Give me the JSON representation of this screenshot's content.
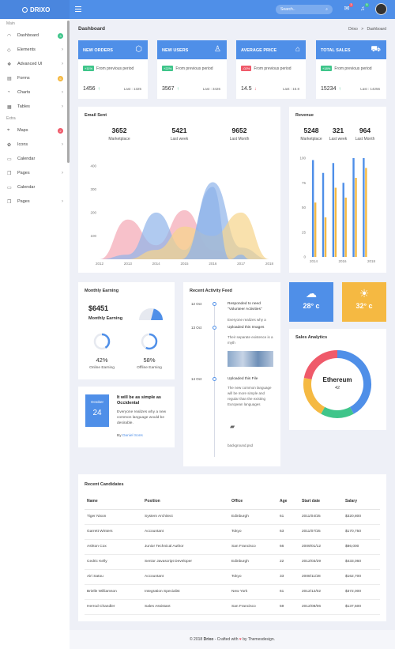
{
  "app": {
    "brand": "DRIXO"
  },
  "header": {
    "search_placeholder": "Search..",
    "mail_badge": "3",
    "bell_badge": "5"
  },
  "sidebar": {
    "main_label": "Main",
    "extra_label": "Extra",
    "items": [
      {
        "label": "Dashboard",
        "icon": "dashboard-icon",
        "badge": "3"
      },
      {
        "label": "Elements",
        "icon": "elements-icon"
      },
      {
        "label": "Advanced UI",
        "icon": "advanced-ui-icon"
      },
      {
        "label": "Forms",
        "icon": "forms-icon",
        "badge": "6"
      },
      {
        "label": "Charts",
        "icon": "charts-icon"
      },
      {
        "label": "Tables",
        "icon": "tables-icon"
      }
    ],
    "extra_items": [
      {
        "label": "Maps",
        "icon": "map-icon",
        "badge": "2"
      },
      {
        "label": "Icons",
        "icon": "icons-icon"
      },
      {
        "label": "Calendar",
        "icon": "calendar-icon"
      },
      {
        "label": "Pages",
        "icon": "pages-icon"
      },
      {
        "label": "Calendar",
        "icon": "calendar-icon"
      },
      {
        "label": "Pages",
        "icon": "pages-icon"
      }
    ]
  },
  "page": {
    "title": "Dashboard",
    "crumb_root": "Drixo",
    "crumb_sep": ">",
    "crumb_current": "Dashboard"
  },
  "stats": [
    {
      "title": "NEW ORDERS",
      "icon": "cube-icon",
      "pct": "+11%",
      "prev": "From previous period",
      "value": "1456",
      "arrow": "↑",
      "last": "Last : 1325"
    },
    {
      "title": "NEW USERS",
      "icon": "user-icon",
      "pct": "+22%",
      "prev": "From previous period",
      "value": "3567",
      "arrow": "↑",
      "last": "Last : 3426"
    },
    {
      "title": "AVERAGE PRICE",
      "icon": "tag-icon",
      "pct": "-02%",
      "prev": "From previous period",
      "value": "14.5",
      "arrow": "↓",
      "last": "Last : 15.8"
    },
    {
      "title": "TOTAL SALES",
      "icon": "cart-icon",
      "pct": "+18%",
      "prev": "From previous period",
      "value": "15234",
      "arrow": "↑",
      "last": "Last : 14256"
    }
  ],
  "email": {
    "title": "Email Sent",
    "summary": [
      {
        "value": "3652",
        "label": "Marketplace"
      },
      {
        "value": "5421",
        "label": "Last week"
      },
      {
        "value": "9652",
        "label": "Last Month"
      }
    ]
  },
  "revenue": {
    "title": "Revenue",
    "summary": [
      {
        "value": "5248",
        "label": "Marketplace"
      },
      {
        "value": "321",
        "label": "Last week"
      },
      {
        "value": "964",
        "label": "Last Month"
      }
    ]
  },
  "monthly": {
    "title": "Monthly Earning",
    "amount": "$6451",
    "label": "Monthly Earning",
    "online_pct": "42%",
    "online_label": "Online Earning",
    "offline_pct": "58%",
    "offline_label": "Offline Earning"
  },
  "post": {
    "month": "October",
    "day": "24",
    "title": "It will be as simple as Occidental",
    "body": "Everyone realizes why a new common language would be desirable.",
    "by": "By",
    "author": "Daniel Sons"
  },
  "feed": {
    "title": "Recent Activity Feed",
    "items": [
      {
        "time": "12 Oct",
        "text": "Responded to need \"Volunteer Activities\"",
        "sub": "Everyone realizes why a"
      },
      {
        "time": "13 Oct",
        "text": "Uploaded this Images",
        "sub": "Their separate existence is a myth"
      },
      {
        "time": "14 Oct",
        "text": "Uploaded this File",
        "sub": "The new common language will be more simple and regular than the existing European languages"
      },
      {
        "time": "",
        "text": "",
        "sub": "background.psd"
      }
    ]
  },
  "weather": [
    {
      "value": "28° c",
      "icon": "cloud-icon",
      "color": "#4f8fe8"
    },
    {
      "value": "32° c",
      "icon": "sun-cloud-icon",
      "color": "#f5b942"
    }
  ],
  "sales": {
    "title": "Sales Analytics",
    "center_label": "Ethereum",
    "center_value": "42"
  },
  "candidates": {
    "title": "Recent Candidates",
    "columns": [
      "Name",
      "Position",
      "Office",
      "Age",
      "Start date",
      "Salary"
    ],
    "rows": [
      [
        "Tiger Nixon",
        "System Architect",
        "Edinburgh",
        "61",
        "2011/04/25",
        "$320,800"
      ],
      [
        "Garrett Winters",
        "Accountant",
        "Tokyo",
        "63",
        "2011/07/25",
        "$170,750"
      ],
      [
        "Ashton Cox",
        "Junior Technical Author",
        "San Francisco",
        "66",
        "2009/01/12",
        "$86,000"
      ],
      [
        "Cedric Kelly",
        "Senior Javascript Developer",
        "Edinburgh",
        "22",
        "2012/03/29",
        "$433,060"
      ],
      [
        "Airi Satou",
        "Accountant",
        "Tokyo",
        "33",
        "2008/11/28",
        "$162,700"
      ],
      [
        "Brielle Williamson",
        "Integration Specialist",
        "New York",
        "61",
        "2012/12/02",
        "$372,000"
      ],
      [
        "Herrod Chandler",
        "Sales Assistant",
        "San Francisco",
        "59",
        "2012/08/06",
        "$137,500"
      ]
    ]
  },
  "footer": {
    "prefix": "© 2018",
    "brand": "Drixo",
    "middle": "- Crafted with",
    "heart": "♥",
    "suffix": "by Themesdesign."
  },
  "chart_data": [
    {
      "type": "area",
      "title": "Email Sent",
      "x": [
        2012,
        2013,
        2014,
        2015,
        2016,
        2017,
        2018
      ],
      "ylim": [
        0,
        450
      ],
      "yticks": [
        100,
        200,
        300,
        400
      ],
      "series": [
        {
          "values": [
            0,
            170,
            60,
            210,
            40,
            0,
            0
          ],
          "color": "#f4a6b3"
        },
        {
          "values": [
            0,
            20,
            200,
            40,
            330,
            50,
            0
          ],
          "color": "#8fb3ea"
        },
        {
          "values": [
            0,
            0,
            40,
            140,
            100,
            200,
            0
          ],
          "color": "#f7d48a"
        }
      ],
      "top_series": {
        "x": [
          2014.9,
          2016,
          2016.6,
          2017,
          2017.3
        ],
        "values": [
          0,
          310,
          0,
          20,
          0
        ]
      }
    },
    {
      "type": "bar",
      "title": "Revenue",
      "categories": [
        2014,
        2014.5,
        2015,
        2015.5,
        2016,
        2016.5
      ],
      "ylim": [
        0,
        100
      ],
      "yticks": [
        0,
        25,
        50,
        75,
        100
      ],
      "xticks": [
        2014,
        2016,
        2018
      ],
      "series": [
        {
          "values": [
            98,
            85,
            95,
            75,
            100,
            100
          ],
          "color": "#4f8fe8"
        },
        {
          "values": [
            55,
            40,
            70,
            60,
            80,
            90
          ],
          "color": "#f5b942"
        }
      ]
    },
    {
      "type": "pie",
      "title": "Monthly Earning",
      "values": [
        42,
        58
      ],
      "colors": [
        "#4f8fe8",
        "#e6e9f0"
      ]
    },
    {
      "type": "pie",
      "title": "Sales Analytics",
      "center_label": "Ethereum",
      "center_value": "42",
      "values": [
        42,
        16,
        20,
        22
      ],
      "colors": [
        "#4f8fe8",
        "#3fc58a",
        "#f5b942",
        "#ef5a6a"
      ]
    }
  ]
}
